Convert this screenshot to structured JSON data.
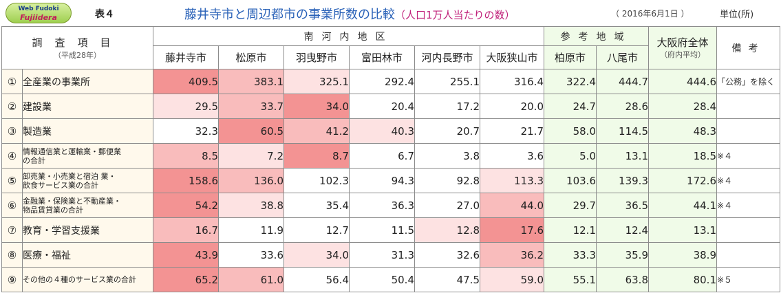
{
  "header": {
    "logo_line1": "Web Fudoki",
    "logo_line2": "Fujiidera",
    "table_label": "表４",
    "title_main": "藤井寺市と周辺都市の事業所数の比較",
    "title_sub": "（人口1万人当たりの数）",
    "date": "（ 2016年6月1日 ）",
    "unit": "単位(所)"
  },
  "columns": {
    "item_header": "調査項目",
    "item_sub": "（平成28年）",
    "group_nankawachi": "南河内地区",
    "group_sanko": "参考地域",
    "osaka_header": "大阪府全体",
    "osaka_sub": "（府内平均）",
    "biko_header": "備考",
    "cities": [
      "藤井寺市",
      "松原市",
      "羽曳野市",
      "富田林市",
      "河内長野市",
      "大阪狭山市",
      "柏原市",
      "八尾市"
    ]
  },
  "colors": {
    "label_bg": "#fff9ec",
    "reference_bg": "#f0fbe8",
    "level1": "#fde2e2",
    "level2": "#f9bcbc",
    "level3": "#f39393"
  },
  "rows": [
    {
      "no": "①",
      "label": "全産業の事業所",
      "small": false,
      "values": [
        "409.5",
        "383.1",
        "325.1",
        "292.4",
        "255.1",
        "316.4",
        "322.4",
        "444.7"
      ],
      "heat": [
        3,
        2,
        1,
        0,
        0,
        0
      ],
      "osaka": "444.6",
      "note": "「公務」を除く"
    },
    {
      "no": "②",
      "label": "建設業",
      "small": false,
      "values": [
        "29.5",
        "33.7",
        "34.0",
        "20.4",
        "17.2",
        "20.0",
        "24.7",
        "28.6"
      ],
      "heat": [
        1,
        2,
        3,
        0,
        0,
        0
      ],
      "osaka": "28.4",
      "note": ""
    },
    {
      "no": "③",
      "label": "製造業",
      "small": false,
      "values": [
        "32.3",
        "60.5",
        "41.2",
        "40.3",
        "20.7",
        "21.7",
        "58.0",
        "114.5"
      ],
      "heat": [
        0,
        3,
        2,
        1,
        0,
        0
      ],
      "osaka": "48.3",
      "note": ""
    },
    {
      "no": "④",
      "label": "情報通信業と運輸業・郵便業の合計",
      "small": true,
      "label_lines": [
        "情報通信業と運輸業・郵便業",
        "の合計"
      ],
      "values": [
        "8.5",
        "7.2",
        "8.7",
        "6.7",
        "3.8",
        "3.6",
        "5.0",
        "13.1"
      ],
      "heat": [
        2,
        1,
        3,
        0,
        0,
        0
      ],
      "osaka": "18.5",
      "note": "※４"
    },
    {
      "no": "⑤",
      "label": "卸売業・小売業と宿泊 業・飲食サービス業の合計",
      "small": true,
      "label_lines": [
        "卸売業・小売業と宿泊 業・",
        "飲食サービス業の合計"
      ],
      "values": [
        "158.6",
        "136.0",
        "102.3",
        "94.3",
        "92.8",
        "113.3",
        "103.6",
        "139.3"
      ],
      "heat": [
        3,
        2,
        0,
        0,
        0,
        1
      ],
      "osaka": "172.6",
      "note": "※４"
    },
    {
      "no": "⑥",
      "label": "金融業・保険業と不動産業・物品賃貸業の合計",
      "small": true,
      "label_lines": [
        "金融業・保険業と不動産業・",
        "物品賃貸業の合計"
      ],
      "values": [
        "54.2",
        "38.8",
        "35.4",
        "36.3",
        "27.0",
        "44.0",
        "29.7",
        "36.5"
      ],
      "heat": [
        3,
        1,
        0,
        0,
        0,
        2
      ],
      "osaka": "44.1",
      "note": "※４"
    },
    {
      "no": "⑦",
      "label": "教育・学習支援業",
      "small": false,
      "values": [
        "16.7",
        "11.9",
        "12.7",
        "11.5",
        "12.8",
        "17.6",
        "12.1",
        "12.4"
      ],
      "heat": [
        2,
        0,
        0,
        0,
        1,
        3
      ],
      "osaka": "13.1",
      "note": ""
    },
    {
      "no": "⑧",
      "label": "医療・福祉",
      "small": false,
      "values": [
        "43.9",
        "33.6",
        "34.0",
        "31.3",
        "32.6",
        "36.2",
        "33.3",
        "35.9"
      ],
      "heat": [
        3,
        0,
        1,
        0,
        0,
        2
      ],
      "osaka": "38.9",
      "note": ""
    },
    {
      "no": "⑨",
      "label": "その他の４種のサービス業の合計",
      "small": true,
      "label_lines": [
        "その他の４種のサービス業の合計"
      ],
      "values": [
        "65.2",
        "61.0",
        "56.4",
        "50.4",
        "47.5",
        "59.0",
        "55.1",
        "63.8"
      ],
      "heat": [
        3,
        2,
        0,
        0,
        0,
        1
      ],
      "osaka": "80.1",
      "note": "※５"
    }
  ]
}
